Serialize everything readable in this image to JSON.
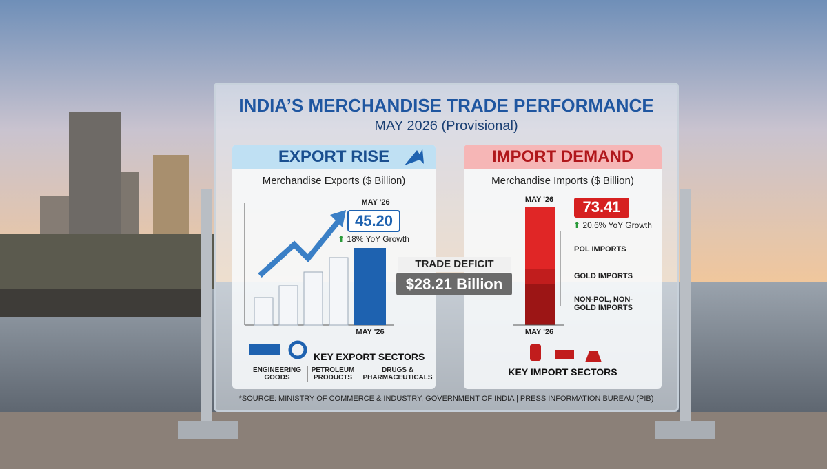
{
  "title": "INDIA’S MERCHANDISE TRADE PERFORMANCE",
  "subtitle": "MAY 2026 (Provisional)",
  "exports": {
    "header": "EXPORT RISE",
    "subtitle": "Merchandise Exports ($ Billion)",
    "period_top": "MAY '26",
    "value": "45.20",
    "growth": "18% YoY Growth",
    "period_bottom": "MAY '26",
    "sectors_title": "KEY EXPORT SECTORS",
    "sectors": [
      "ENGINEERING GOODS",
      "PETROLEUM PRODUCTS",
      "DRUGS & PHARMACEUTICALS"
    ]
  },
  "deficit": {
    "label": "TRADE DEFICIT",
    "value": "$28.21 Billion"
  },
  "imports": {
    "header": "IMPORT DEMAND",
    "subtitle": "Merchandise Imports ($ Billion)",
    "period_top": "MAY '26",
    "value": "73.41",
    "growth": "20.6% YoY Growth",
    "period_bottom": "MAY '26",
    "segments": [
      "POL IMPORTS",
      "GOLD IMPORTS",
      "NON-POL, NON-GOLD IMPORTS"
    ],
    "sectors_title": "KEY IMPORT SECTORS"
  },
  "source": "*SOURCE: MINISTRY OF COMMERCE & INDUSTRY, GOVERNMENT OF INDIA | PRESS INFORMATION BUREAU (PIB)"
}
